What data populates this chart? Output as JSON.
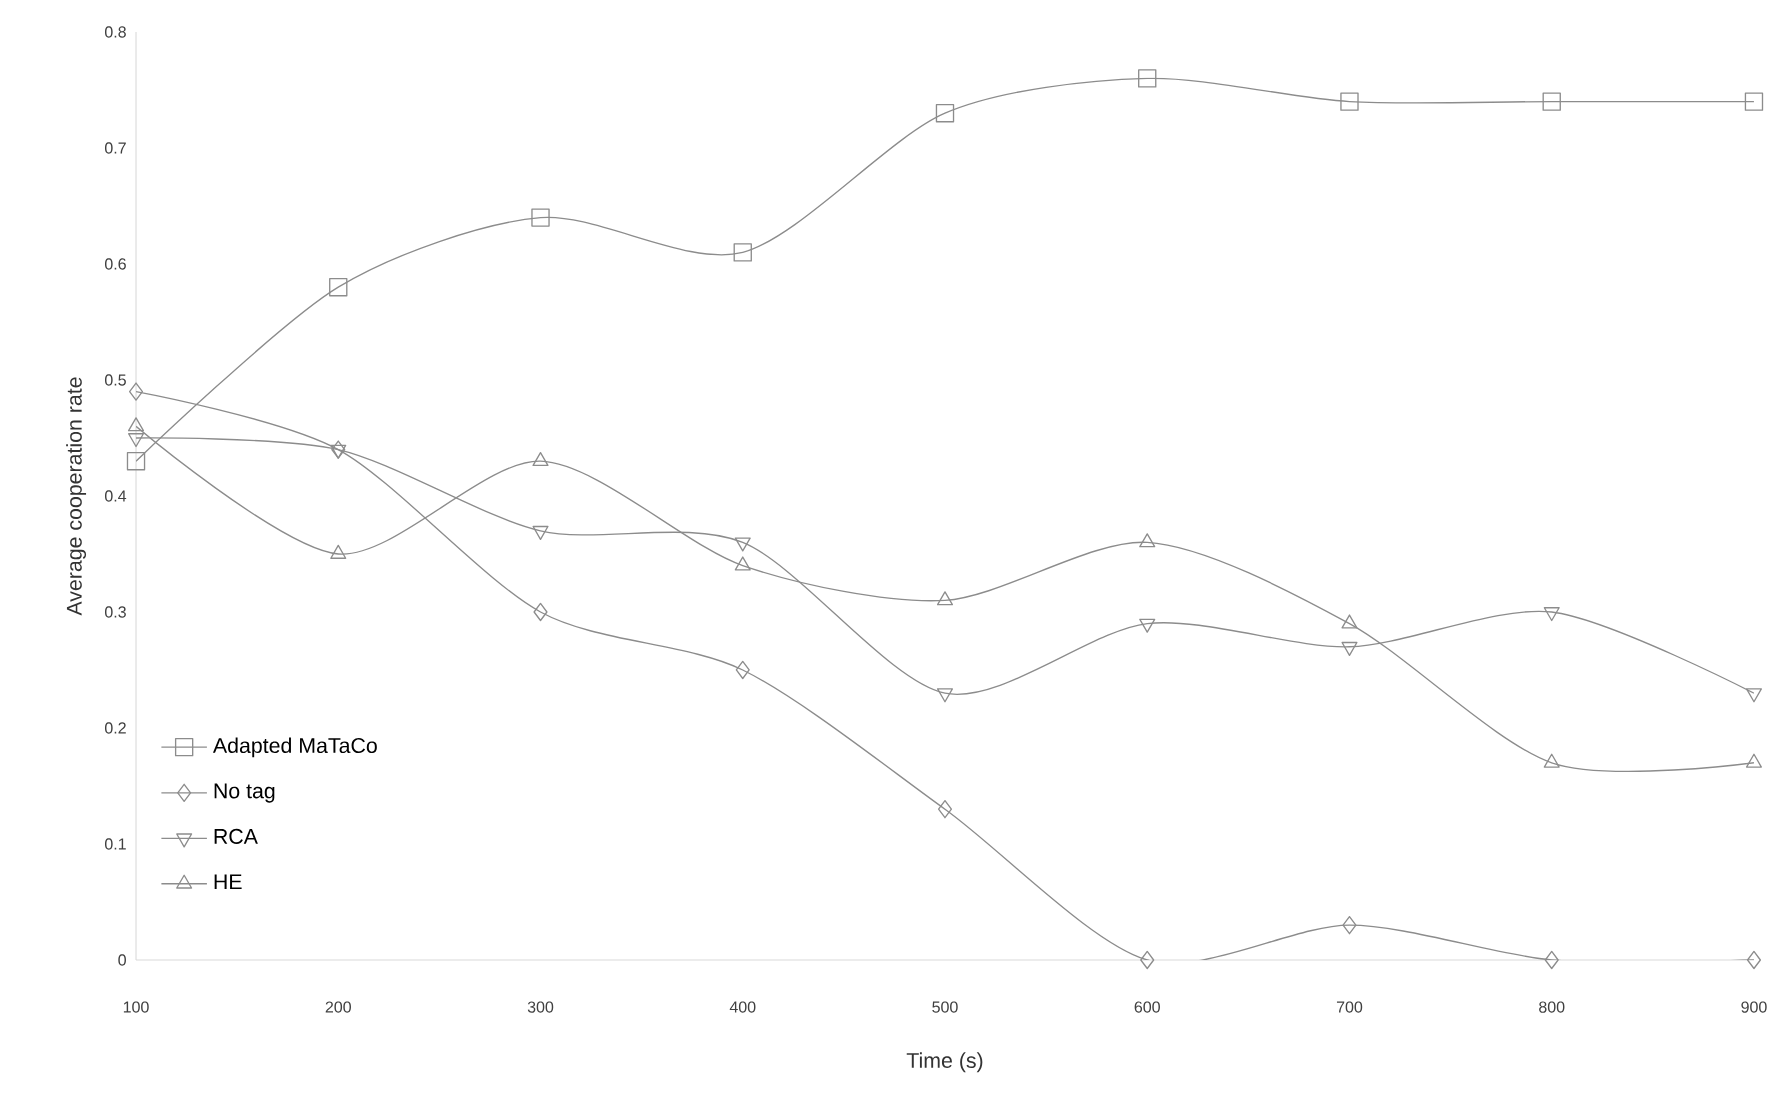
{
  "chart_data": {
    "type": "line",
    "xlabel": "Time (s)",
    "ylabel": "Average cooperation rate",
    "x": [
      100,
      200,
      300,
      400,
      500,
      600,
      700,
      800,
      900
    ],
    "xlim": [
      100,
      900
    ],
    "xticks": [
      100,
      200,
      300,
      400,
      500,
      600,
      700,
      800,
      900
    ],
    "ylim": [
      0,
      0.8
    ],
    "yticks": [
      0,
      0.1,
      0.2,
      0.3,
      0.4,
      0.5,
      0.6,
      0.7,
      0.8
    ],
    "legend": "bottom left",
    "grid": false,
    "line_style": "solid",
    "series": [
      {
        "name": "Adapted MaTaCo",
        "color": "#8c8c8c",
        "marker": "square",
        "values": [
          0.43,
          0.58,
          0.64,
          0.61,
          0.73,
          0.76,
          0.74,
          0.74,
          0.74
        ]
      },
      {
        "name": "No tag",
        "color": "#8c8c8c",
        "marker": "diamond",
        "values": [
          0.49,
          0.44,
          0.3,
          0.25,
          0.13,
          0.0,
          0.03,
          0.0,
          0.0
        ]
      },
      {
        "name": "RCA",
        "color": "#8c8c8c",
        "marker": "triangle down",
        "values": [
          0.45,
          0.44,
          0.37,
          0.36,
          0.23,
          0.29,
          0.27,
          0.3,
          0.23
        ]
      },
      {
        "name": "HE",
        "color": "#8c8c8c",
        "marker": "triangle",
        "values": [
          0.46,
          0.35,
          0.43,
          0.34,
          0.31,
          0.36,
          0.29,
          0.17,
          0.17
        ]
      }
    ]
  }
}
